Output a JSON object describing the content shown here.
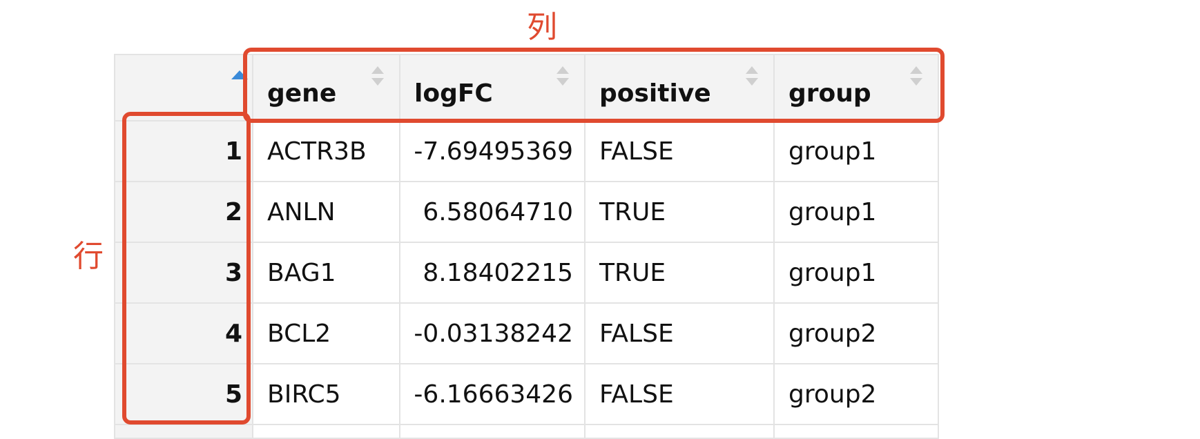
{
  "annotations": {
    "column_label": "列",
    "row_label": "行",
    "highlight_color": "#e04a2f"
  },
  "table": {
    "columns": [
      "gene",
      "logFC",
      "positive",
      "group"
    ],
    "sort_indicator_color": "#3a8ad8",
    "rows": [
      {
        "index": "1",
        "gene": "ACTR3B",
        "logFC": "-7.69495369",
        "positive": "FALSE",
        "group": "group1"
      },
      {
        "index": "2",
        "gene": "ANLN",
        "logFC": "6.58064710",
        "positive": "TRUE",
        "group": "group1"
      },
      {
        "index": "3",
        "gene": "BAG1",
        "logFC": "8.18402215",
        "positive": "TRUE",
        "group": "group1"
      },
      {
        "index": "4",
        "gene": "BCL2",
        "logFC": "-0.03138242",
        "positive": "FALSE",
        "group": "group2"
      },
      {
        "index": "5",
        "gene": "BIRC5",
        "logFC": "-6.16663426",
        "positive": "FALSE",
        "group": "group2"
      }
    ]
  }
}
